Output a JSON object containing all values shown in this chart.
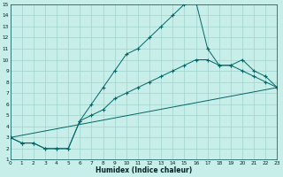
{
  "xlabel": "Humidex (Indice chaleur)",
  "bg_color": "#c8eeea",
  "grid_color": "#a0d4ce",
  "line_color": "#006666",
  "xlim": [
    0,
    23
  ],
  "ylim": [
    1,
    15
  ],
  "curve1_x": [
    0,
    1,
    2,
    3,
    4,
    5,
    6,
    7,
    8,
    9,
    10,
    11,
    12,
    13,
    14,
    15,
    16,
    17,
    18,
    19,
    20,
    21,
    22,
    23
  ],
  "curve1_y": [
    3.0,
    2.5,
    2.5,
    2.0,
    2.0,
    2.0,
    4.5,
    6.0,
    7.5,
    9.0,
    10.5,
    11.0,
    12.0,
    13.0,
    14.0,
    15.0,
    15.2,
    11.0,
    9.5,
    9.5,
    9.0,
    8.5,
    8.0,
    7.5
  ],
  "curve2_x": [
    0,
    1,
    2,
    3,
    4,
    5,
    6,
    7,
    8,
    9,
    10,
    11,
    12,
    13,
    14,
    15,
    16,
    17,
    18,
    19,
    20,
    21,
    22,
    23
  ],
  "curve2_y": [
    3.0,
    2.5,
    2.5,
    2.0,
    2.0,
    2.0,
    4.5,
    5.0,
    5.5,
    6.5,
    7.0,
    7.5,
    8.0,
    8.5,
    9.0,
    9.5,
    10.0,
    10.0,
    9.5,
    9.5,
    10.0,
    9.0,
    8.5,
    7.5
  ],
  "curve3_x": [
    0,
    23
  ],
  "curve3_y": [
    3.0,
    7.5
  ]
}
